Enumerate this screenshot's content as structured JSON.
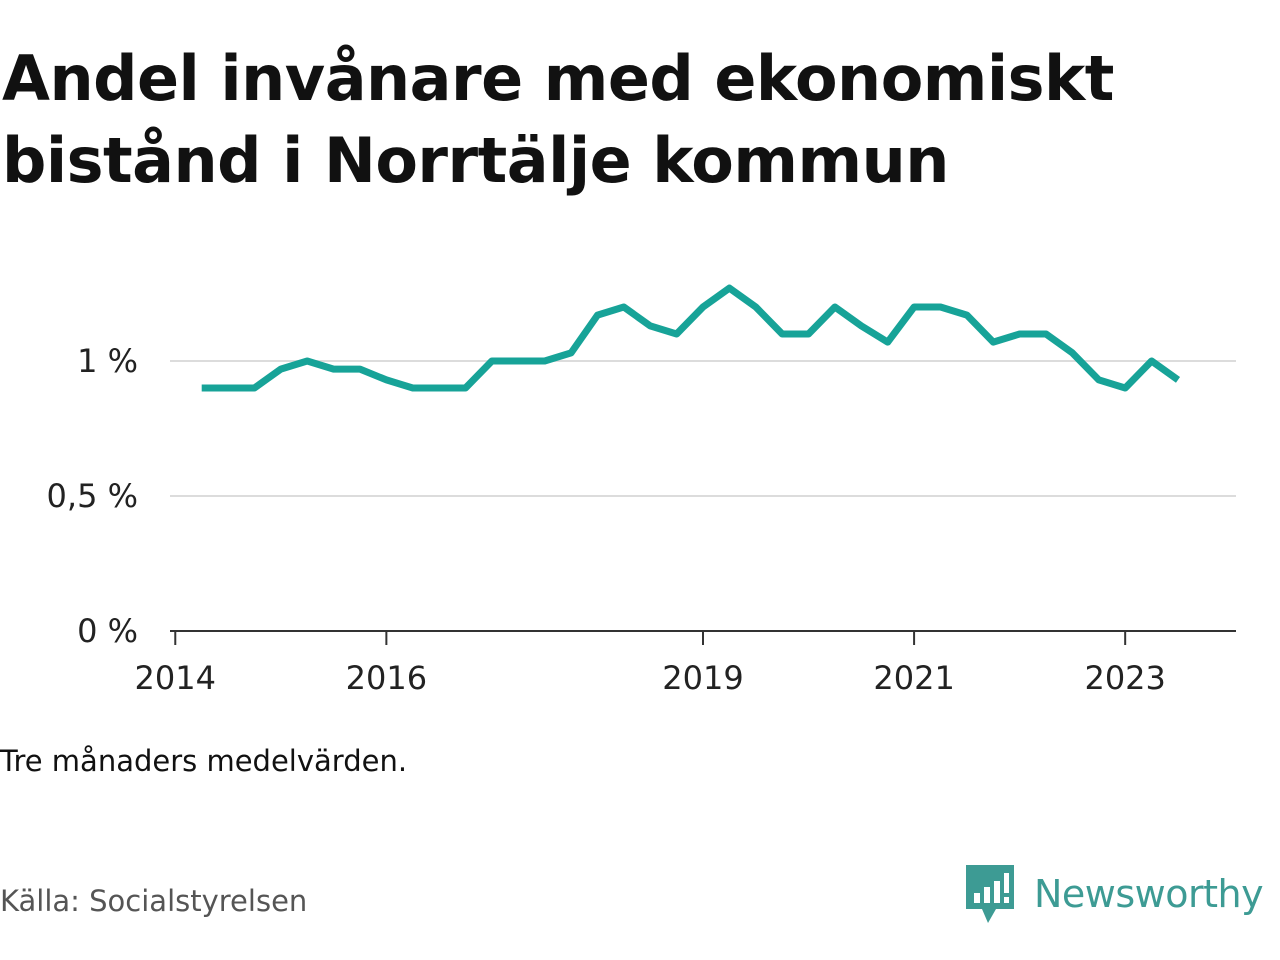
{
  "chart_data": {
    "type": "line",
    "title": "Andel invånare med ekonomiskt bistånd i Norrtälje kommun",
    "subtitle": "",
    "xlabel": "",
    "ylabel": "",
    "ylim": [
      0,
      1.3
    ],
    "yticks": [
      {
        "value": 0,
        "label": "0 %"
      },
      {
        "value": 0.5,
        "label": "0,5 %"
      },
      {
        "value": 1,
        "label": "1 %"
      }
    ],
    "xticks": [
      {
        "value": 2014,
        "label": "2014"
      },
      {
        "value": 2016,
        "label": "2016"
      },
      {
        "value": 2019,
        "label": "2019"
      },
      {
        "value": 2021,
        "label": "2021"
      },
      {
        "value": 2023,
        "label": "2023"
      }
    ],
    "grid": true,
    "series": [
      {
        "name": "",
        "color": "#17a398",
        "x": [
          2014.25,
          2014.5,
          2014.75,
          2015.0,
          2015.25,
          2015.5,
          2015.75,
          2016.0,
          2016.25,
          2016.5,
          2016.75,
          2017.0,
          2017.25,
          2017.5,
          2017.75,
          2018.0,
          2018.25,
          2018.5,
          2018.75,
          2019.0,
          2019.25,
          2019.5,
          2019.75,
          2020.0,
          2020.25,
          2020.5,
          2020.75,
          2021.0,
          2021.25,
          2021.5,
          2021.75,
          2022.0,
          2022.25,
          2022.5,
          2022.75,
          2023.0,
          2023.25,
          2023.5
        ],
        "values": [
          0.9,
          0.9,
          0.9,
          0.97,
          1.0,
          0.97,
          0.97,
          0.93,
          0.9,
          0.9,
          0.9,
          1.0,
          1.0,
          1.0,
          1.03,
          1.17,
          1.2,
          1.13,
          1.1,
          1.2,
          1.27,
          1.2,
          1.1,
          1.1,
          1.2,
          1.13,
          1.07,
          1.2,
          1.2,
          1.17,
          1.07,
          1.1,
          1.1,
          1.03,
          0.93,
          0.9,
          1.0,
          0.93
        ]
      }
    ]
  },
  "note": "Tre månaders medelvärden.",
  "source": "Källa: Socialstyrelsen",
  "brand": {
    "name": "Newsworthy",
    "icon": "newsworthy-logo-icon",
    "color": "#3d9b94"
  }
}
